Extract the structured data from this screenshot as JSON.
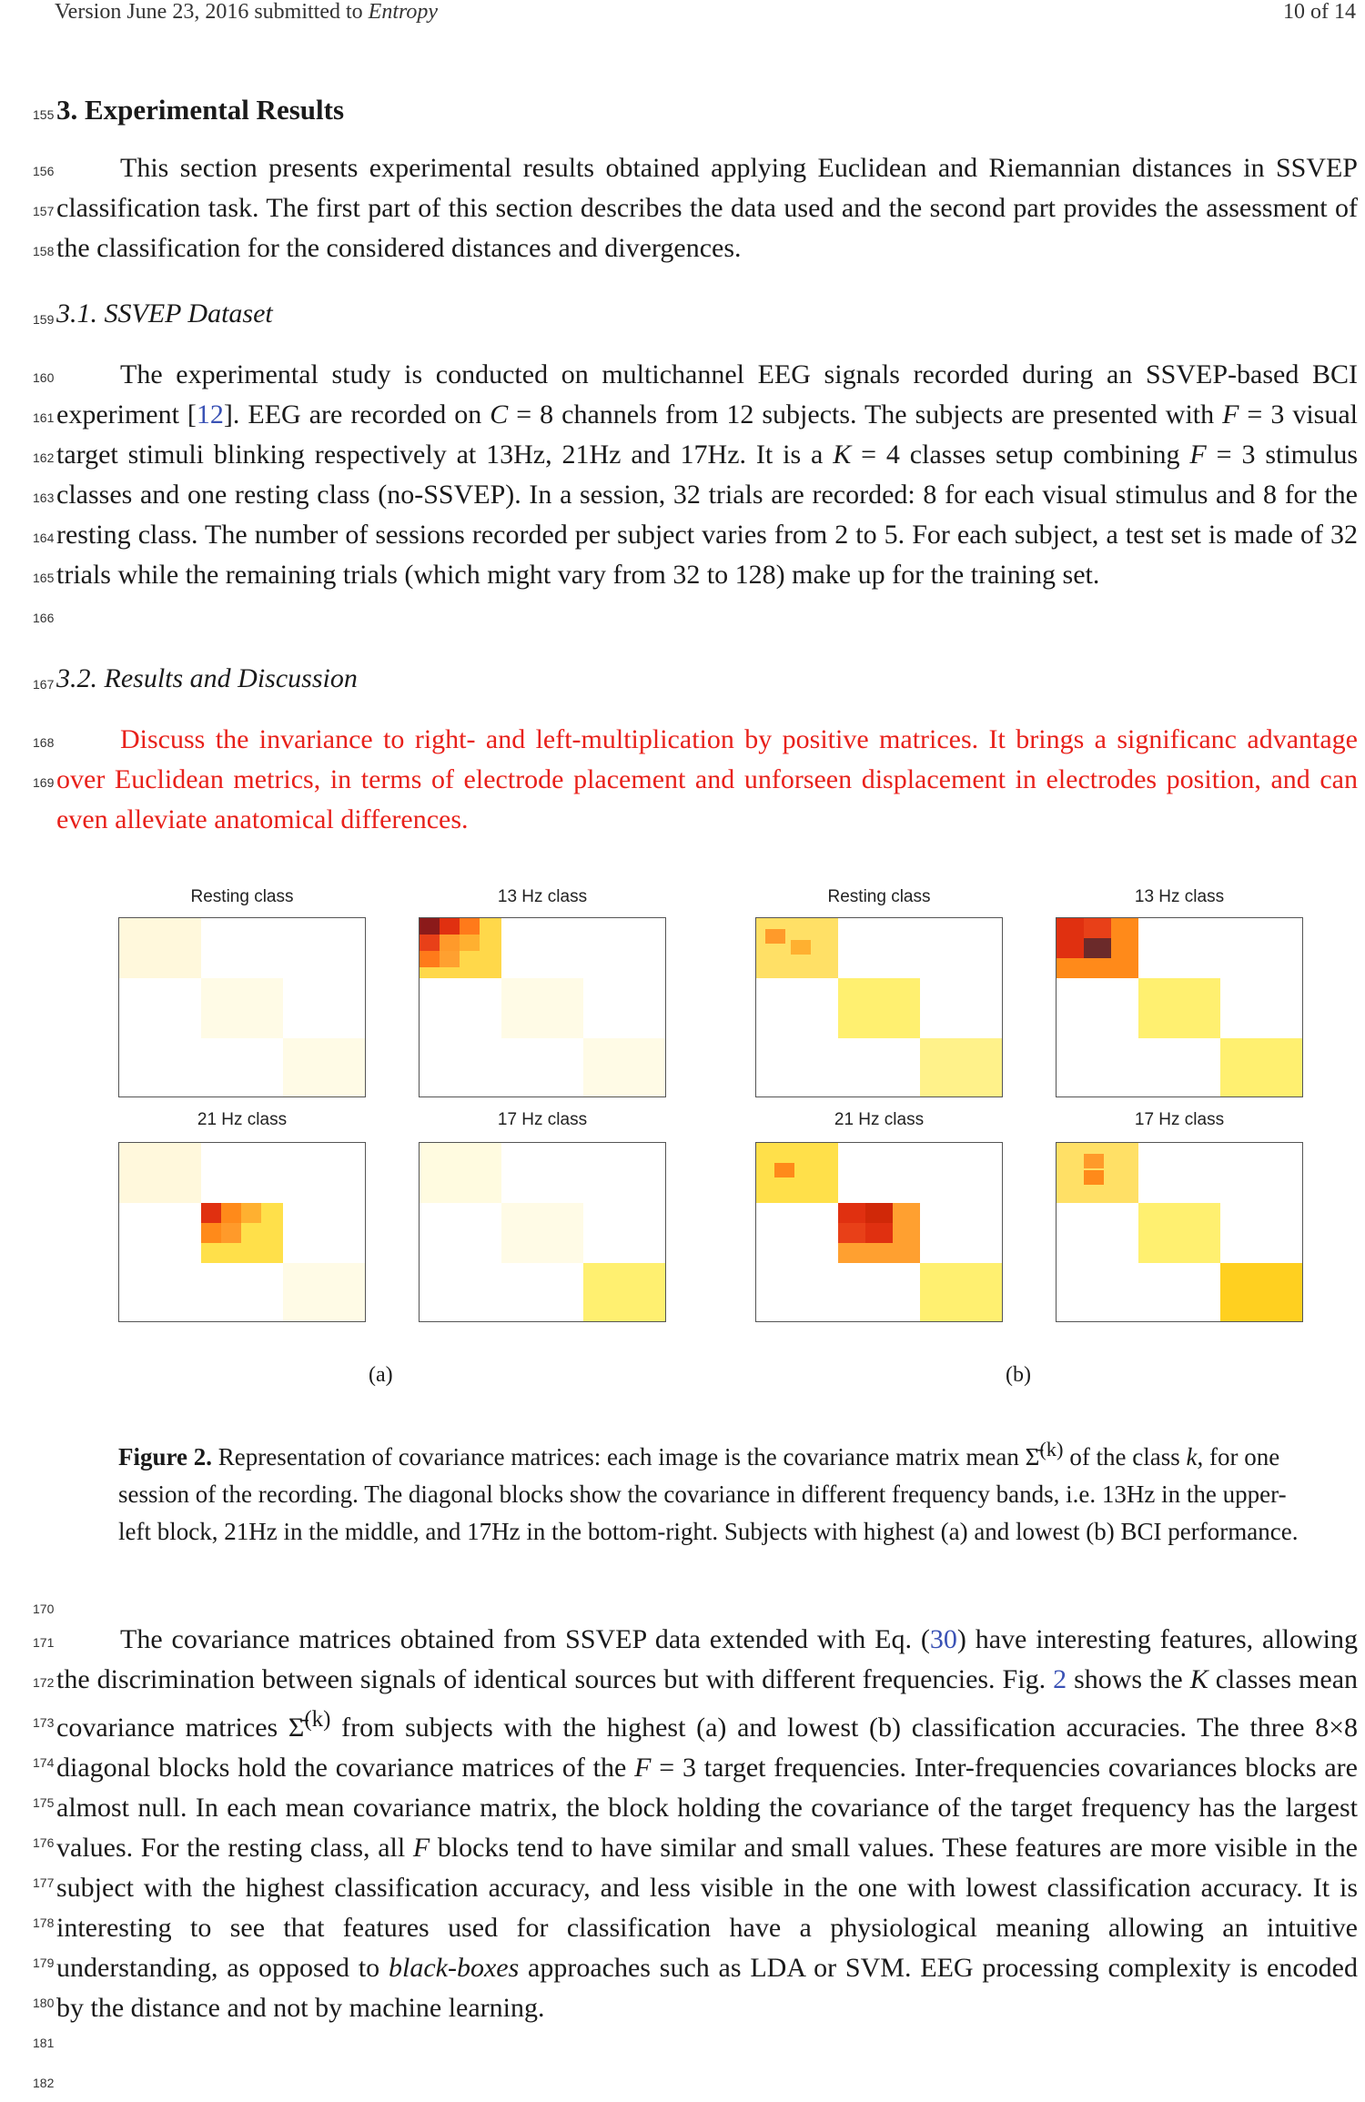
{
  "header": {
    "left_prefix": "Version June 23, 2016 submitted to ",
    "journal": "Entropy",
    "page": "10 of 14"
  },
  "section": {
    "heading": "3. Experimental Results",
    "intro": "This section presents experimental results obtained applying Euclidean and Riemannian distances in SSVEP classification task. The first part of this section describes the data used and the second part provides the assessment of the classification for the considered distances and divergences.",
    "sub1": {
      "heading": "3.1. SSVEP Dataset",
      "p1_a": "The experimental study is conducted on multichannel EEG signals recorded during an SSVEP-based BCI experiment [",
      "p1_ref": "12",
      "p1_b": "]. EEG are recorded on ",
      "p1_C": "C",
      "p1_c": " = 8 channels from 12 subjects. The subjects are presented with ",
      "p1_F": "F",
      "p1_d": " = 3 visual target stimuli blinking respectively at 13Hz, 21Hz and 17Hz. It is a ",
      "p1_K": "K",
      "p1_e": " = 4 classes setup combining ",
      "p1_F2": "F",
      "p1_f": " = 3 stimulus classes and one resting class (no-SSVEP). In a session, 32 trials are recorded: 8 for each visual stimulus and 8 for the resting class. The number of sessions recorded per subject varies from 2 to 5. For each subject, a test set is made of 32 trials while the remaining trials (which might vary from 32 to 128) make up for the training set."
    },
    "sub2": {
      "heading": "3.2. Results and Discussion",
      "red_note": "Discuss the invariance to right- and left-multiplication by positive matrices. It brings a significanc advantage over Euclidean metrics, in terms of electrode placement and unforseen displacement in electrodes position, and can even alleviate anatomical differences."
    }
  },
  "line_numbers": [
    "155",
    "156",
    "157",
    "158",
    "159",
    "160",
    "161",
    "162",
    "163",
    "164",
    "165",
    "166",
    "167",
    "168",
    "169",
    "170",
    "171",
    "172",
    "173",
    "174",
    "175",
    "176",
    "177",
    "178",
    "179",
    "180",
    "181",
    "182"
  ],
  "figure": {
    "panel_titles": [
      "Resting class",
      "13 Hz class",
      "21 Hz class",
      "17 Hz class"
    ],
    "label_a": "(a)",
    "label_b": "(b)",
    "caption_label": "Figure 2.",
    "caption_text": " Representation of covariance matrices: each image is the covariance matrix mean Σ̄",
    "caption_sup": "(k)",
    "caption_text2": " of the class ",
    "caption_k": "k",
    "caption_text3": ", for one session of the recording. The diagonal blocks show the covariance in different frequency bands, i.e. 13Hz in the upper-left block, 21Hz in the middle, and 17Hz in the bottom-right. Subjects with highest (a) and lowest (b) BCI performance."
  },
  "closing": {
    "t1": "The covariance matrices obtained from SSVEP data extended with Eq. (",
    "eq_ref": "30",
    "t2": ") have interesting features, allowing the discrimination between signals of identical sources but with different frequencies. Fig. ",
    "fig_ref": "2",
    "t3": " shows the ",
    "K": "K",
    "t4": " classes mean covariance matrices Σ̄",
    "sup": "(k)",
    "t5": " from subjects with the highest (a) and lowest (b) classification accuracies. The three 8×8 diagonal blocks hold the covariance matrices of the ",
    "F": "F",
    "t6": " = 3 target frequencies. Inter-frequencies covariances blocks are almost null. In each mean covariance matrix, the block holding the covariance of the target frequency has the largest values. For the resting class, all ",
    "F2": "F",
    "t7": " blocks tend to have similar and small values. These features are more visible in the subject with the highest classification accuracy, and less visible in the one with lowest classification accuracy. It is interesting to see that features used for classification have a physiological meaning allowing an intuitive understanding, as opposed to ",
    "bb": "black-boxes",
    "t8": " approaches such as LDA or SVM. EEG processing complexity is encoded by the distance and not by machine learning."
  }
}
